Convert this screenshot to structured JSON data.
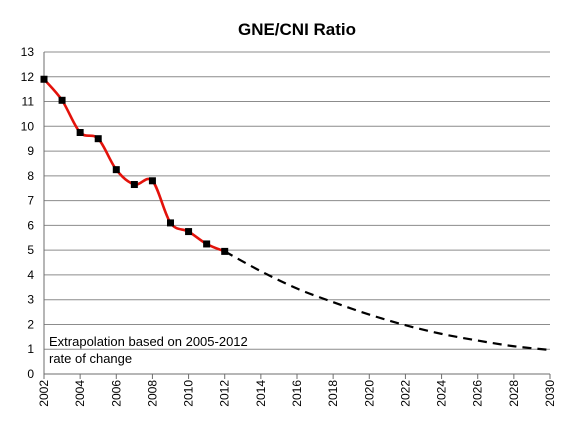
{
  "chart_data": {
    "type": "line",
    "title": "GNE/CNI Ratio",
    "xlabel": "",
    "ylabel": "",
    "xlim": [
      2002,
      2030
    ],
    "ylim": [
      0,
      13
    ],
    "grid": true,
    "x_ticks": [
      "2002",
      "2004",
      "2006",
      "2008",
      "2010",
      "2012",
      "2014",
      "2016",
      "2018",
      "2020",
      "2022",
      "2024",
      "2026",
      "2028",
      "2030"
    ],
    "y_ticks": [
      "0",
      "1",
      "2",
      "3",
      "4",
      "5",
      "6",
      "7",
      "8",
      "9",
      "10",
      "11",
      "12",
      "13"
    ],
    "annotation": [
      "Extrapolation based on 2005-2012",
      "rate of change"
    ],
    "series": [
      {
        "color": "#e3120b",
        "marker": "square",
        "style": "solid",
        "points": [
          {
            "x": 2002,
            "y": 11.9
          },
          {
            "x": 2003,
            "y": 11.05
          },
          {
            "x": 2004,
            "y": 9.75
          },
          {
            "x": 2005,
            "y": 9.5
          },
          {
            "x": 2006,
            "y": 8.25
          },
          {
            "x": 2007,
            "y": 7.65
          },
          {
            "x": 2008,
            "y": 7.8
          },
          {
            "x": 2009,
            "y": 6.1
          },
          {
            "x": 2010,
            "y": 5.75
          },
          {
            "x": 2011,
            "y": 5.25
          },
          {
            "x": 2012,
            "y": 4.95
          }
        ]
      },
      {
        "color": "#000000",
        "marker": "none",
        "style": "dashed",
        "points": [
          {
            "x": 2012,
            "y": 4.95
          },
          {
            "x": 2014,
            "y": 4.15
          },
          {
            "x": 2016,
            "y": 3.45
          },
          {
            "x": 2018,
            "y": 2.9
          },
          {
            "x": 2020,
            "y": 2.4
          },
          {
            "x": 2022,
            "y": 1.97
          },
          {
            "x": 2024,
            "y": 1.62
          },
          {
            "x": 2026,
            "y": 1.35
          },
          {
            "x": 2028,
            "y": 1.12
          },
          {
            "x": 2030,
            "y": 0.97
          }
        ]
      }
    ]
  }
}
